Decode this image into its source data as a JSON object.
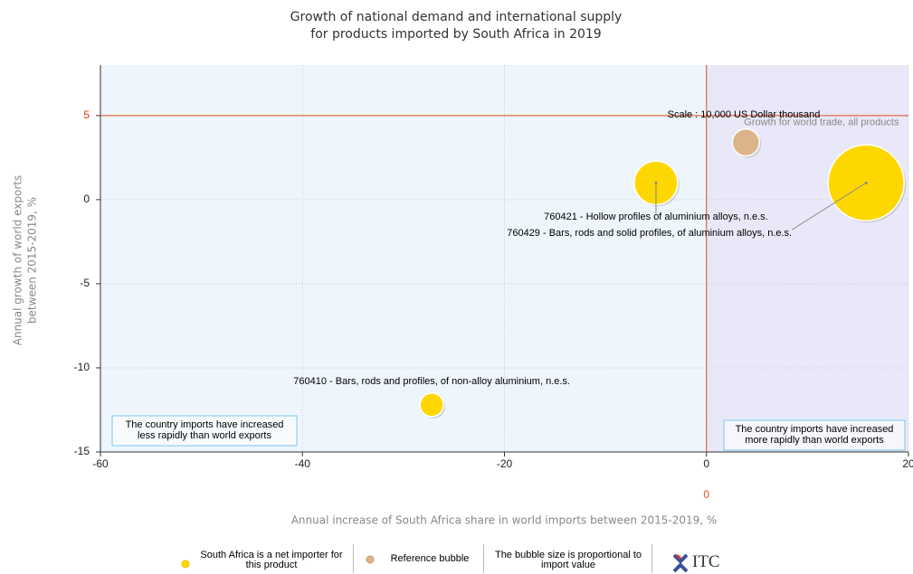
{
  "chart_data": {
    "type": "bubble",
    "title": [
      "Growth of national demand and international supply",
      "for products imported by South Africa in 2019"
    ],
    "xlabel": "Annual increase of South Africa share in world imports between 2015-2019, %",
    "ylabel": [
      "Annual growth of world exports",
      "between 2015-2019, %"
    ],
    "xlim": [
      -60,
      20
    ],
    "ylim": [
      -15,
      8
    ],
    "xticks": [
      -60,
      -40,
      -20,
      0,
      20
    ],
    "yticks": [
      -15,
      -10,
      -5,
      0,
      5
    ],
    "grid": true,
    "reference_lines": {
      "x": 0,
      "y": 5,
      "x_label": "0"
    },
    "series": [
      {
        "name": "South Africa is a net importer for this product",
        "color": "#ffd700",
        "x": [
          -5.0,
          15.8,
          -27.2
        ],
        "values": [
          1.0,
          1.0,
          -12.2
        ],
        "sizes": [
          25600,
          78400,
          7500
        ],
        "labels": [
          "760421 - Hollow profiles of aluminium alloys, n.e.s.",
          "760429 - Bars, rods and solid profiles, of aluminium alloys, n.e.s.",
          "760410 - Bars, rods and profiles, of non-alloy aluminium, n.e.s."
        ]
      },
      {
        "name": "Reference bubble",
        "color": "#dcb48c",
        "x": [
          3.9
        ],
        "values": [
          3.4
        ],
        "sizes": [
          10000
        ],
        "labels": [
          "Growth for world trade, all products"
        ]
      }
    ],
    "scale_label": "Scale : 10,000 US Dollar thousand",
    "quadrant_notes": [
      "The country imports have increased less rapidly than world exports",
      "The country imports have increased more rapidly than world exports"
    ],
    "size_note": "The bubble size is proportional to import value",
    "logo": "ITC"
  }
}
